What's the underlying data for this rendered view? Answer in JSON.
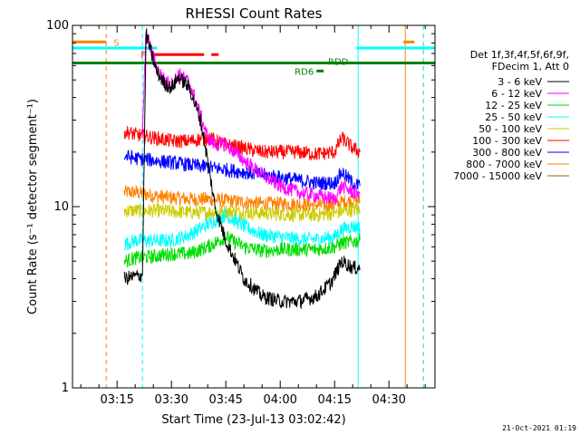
{
  "chart_data": {
    "type": "line",
    "title": "RHESSI Count Rates",
    "xlabel": "Start Time (23-Jul-13 03:02:42)",
    "ylabel": "Count Rate (s⁻¹ detector segment⁻¹)",
    "y_scale": "log",
    "ylim": [
      1,
      100
    ],
    "xlim": [
      "03:02:42",
      "04:42:42"
    ],
    "x_tick_labels": [
      "03:15",
      "03:30",
      "03:45",
      "04:00",
      "04:15",
      "04:30"
    ],
    "y_tick_labels": [
      "1",
      "10",
      "100"
    ],
    "legend_header": [
      "Det 1f,3f,4f,5f,6f,9f,",
      "FDecim 1, Att 0"
    ],
    "legend_position": "right",
    "series": [
      {
        "name": "3 - 6 keV",
        "color": "#000000",
        "x": [
          "03:17",
          "03:22",
          "03:23",
          "03:24",
          "03:26",
          "03:28",
          "03:30",
          "03:32",
          "03:35",
          "03:38",
          "03:40",
          "03:42",
          "03:45",
          "03:50",
          "03:55",
          "04:00",
          "04:05",
          "04:10",
          "04:14",
          "04:17",
          "04:20",
          "04:22"
        ],
        "values": [
          4.0,
          4.2,
          90,
          75,
          55,
          48,
          45,
          52,
          45,
          30,
          18,
          10,
          6.5,
          4.0,
          3.2,
          3.0,
          3.0,
          3.2,
          3.8,
          5.0,
          4.6,
          4.6
        ]
      },
      {
        "name": "6 - 12 keV",
        "color": "#ff00ff",
        "x": [
          "03:22",
          "03:23",
          "03:24",
          "03:26",
          "03:28",
          "03:30",
          "03:32",
          "03:35",
          "03:38",
          "03:40",
          "03:42",
          "03:45",
          "03:50",
          "03:55",
          "04:00",
          "04:05",
          "04:10",
          "04:15",
          "04:17",
          "04:20",
          "04:22"
        ],
        "values": [
          25,
          92,
          78,
          58,
          50,
          47,
          54,
          48,
          32,
          24,
          22,
          22,
          18,
          15,
          13,
          12,
          11.5,
          11,
          13,
          12,
          12
        ]
      },
      {
        "name": "12 - 25 keV",
        "color": "#00dd00",
        "x": [
          "03:17",
          "03:20",
          "03:25",
          "03:30",
          "03:35",
          "03:40",
          "03:45",
          "03:50",
          "03:55",
          "04:00",
          "04:05",
          "04:10",
          "04:15",
          "04:17",
          "04:20",
          "04:22"
        ],
        "values": [
          5.0,
          5.2,
          5.3,
          5.5,
          5.5,
          6.0,
          6.8,
          6.0,
          5.7,
          5.8,
          5.8,
          5.8,
          6.0,
          6.3,
          6.4,
          6.5
        ]
      },
      {
        "name": "25 - 50 keV",
        "color": "#00ffff",
        "x": [
          "03:17",
          "03:20",
          "03:25",
          "03:30",
          "03:35",
          "03:40",
          "03:45",
          "03:50",
          "03:55",
          "04:00",
          "04:05",
          "04:10",
          "04:15",
          "04:17",
          "04:20",
          "04:22"
        ],
        "values": [
          6.2,
          6.5,
          6.5,
          6.5,
          7.0,
          8.0,
          9.0,
          7.8,
          7.0,
          6.8,
          6.6,
          6.6,
          6.8,
          7.5,
          7.8,
          7.6
        ]
      },
      {
        "name": "50 - 100 keV",
        "color": "#cccc00",
        "x": [
          "03:17",
          "03:20",
          "03:25",
          "03:30",
          "03:35",
          "03:40",
          "03:45",
          "03:50",
          "03:55",
          "04:00",
          "04:05",
          "04:10",
          "04:15",
          "04:17",
          "04:20",
          "04:22"
        ],
        "values": [
          9.5,
          9.5,
          9.5,
          9.4,
          9.3,
          9.3,
          9.4,
          9.3,
          9.2,
          9.1,
          9.0,
          9.0,
          9.2,
          9.4,
          9.6,
          9.6
        ]
      },
      {
        "name": "100 - 300 keV",
        "color": "#ff0000",
        "x": [
          "03:17",
          "03:20",
          "03:25",
          "03:30",
          "03:35",
          "03:40",
          "03:45",
          "03:50",
          "03:55",
          "04:00",
          "04:05",
          "04:10",
          "04:15",
          "04:17",
          "04:20",
          "04:22"
        ],
        "values": [
          26,
          25,
          24,
          23,
          23,
          24,
          22,
          21,
          20,
          20,
          20,
          19.5,
          20,
          24,
          21,
          20
        ]
      },
      {
        "name": "300 - 800 keV",
        "color": "#0000ff",
        "x": [
          "03:17",
          "03:20",
          "03:25",
          "03:30",
          "03:35",
          "03:40",
          "03:45",
          "03:50",
          "03:55",
          "04:00",
          "04:05",
          "04:10",
          "04:15",
          "04:17",
          "04:20",
          "04:22"
        ],
        "values": [
          19,
          18.5,
          18,
          17.5,
          17,
          16.5,
          16,
          15.5,
          15,
          14.5,
          14,
          13.5,
          13.5,
          15.5,
          13.5,
          13
        ]
      },
      {
        "name": "800 - 7000 keV",
        "color": "#ff8000",
        "x": [
          "03:17",
          "03:20",
          "03:25",
          "03:30",
          "03:35",
          "03:40",
          "03:45",
          "03:50",
          "03:55",
          "04:00",
          "04:05",
          "04:10",
          "04:15",
          "04:17",
          "04:20",
          "04:22"
        ],
        "values": [
          12,
          12,
          11.5,
          11.2,
          11,
          11,
          10.8,
          10.6,
          10.4,
          10.4,
          10.3,
          10.2,
          10.2,
          10.6,
          10.8,
          10.8
        ]
      },
      {
        "name": "7000 - 15000 keV",
        "color": "#a06000",
        "x": [],
        "values": []
      }
    ],
    "attenuator_bars": [
      {
        "label": "S",
        "color": "#ff8000",
        "x_start": "03:02:42",
        "x_end": "03:12",
        "level": 81
      },
      {
        "label": "",
        "color": "#ff8000",
        "x_start": "04:34",
        "x_end": "04:37",
        "level": 81
      },
      {
        "label": "",
        "color": "#00ffff",
        "x_start": "03:02:42",
        "x_end": "03:26",
        "level": 75
      },
      {
        "label": "",
        "color": "#00ffff",
        "x_start": "04:21",
        "x_end": "04:42:42",
        "level": 75
      },
      {
        "label": "F",
        "color": "#ff0000",
        "x_start": "03:25",
        "x_end": "03:39",
        "level": 69
      },
      {
        "label": "",
        "color": "#ff0000",
        "x_start": "03:41",
        "x_end": "03:43",
        "level": 69
      },
      {
        "label": "RDD",
        "color": "#008000",
        "x_start": "03:02:42",
        "x_end": "04:42:42",
        "level": 62
      },
      {
        "label": "RD6",
        "color": "#008000",
        "x_start": "04:10",
        "x_end": "04:12",
        "level": 56
      }
    ],
    "vertical_markers": [
      {
        "x": "03:12:00",
        "color": "#ff8000",
        "style": "dashed"
      },
      {
        "x": "03:22:00",
        "color": "#00ffff",
        "style": "dashed"
      },
      {
        "x": "04:21:30",
        "color": "#00ffff",
        "style": "solid"
      },
      {
        "x": "04:34:30",
        "color": "#ff8000",
        "style": "solid"
      },
      {
        "x": "04:39:30",
        "color": "#ff8000",
        "style": "dashed"
      },
      {
        "x": "04:39:30",
        "color": "#00ffff",
        "style": "dashed"
      }
    ],
    "grid": false
  },
  "footer": {
    "timestamp": "21-Oct-2021 01:19"
  }
}
